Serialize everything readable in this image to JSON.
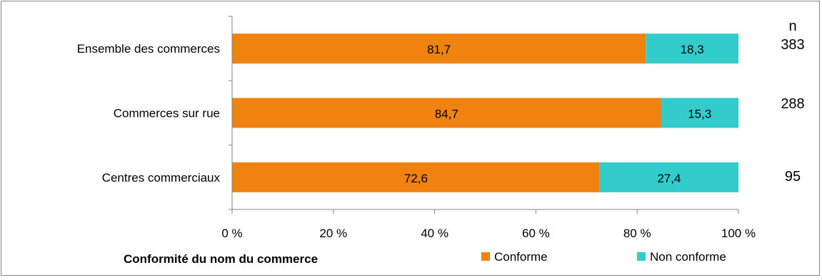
{
  "chart_data": {
    "type": "bar",
    "orientation": "horizontal",
    "stacked": true,
    "categories": [
      "Ensemble des commerces",
      "Commerces sur rue",
      "Centres commerciaux"
    ],
    "series": [
      {
        "name": "Conforme",
        "values": [
          81.7,
          84.7,
          72.6
        ],
        "labels": [
          "81,7",
          "84,7",
          "72,6"
        ],
        "color": "#f0820f"
      },
      {
        "name": "Non conforme",
        "values": [
          18.3,
          15.3,
          27.4
        ],
        "labels": [
          "18,3",
          "15,3",
          "27,4"
        ],
        "color": "#33cccc"
      }
    ],
    "xlim": [
      0,
      100
    ],
    "xticks": [
      "0 %",
      "20 %",
      "40 %",
      "60 %",
      "80 %",
      "100 %"
    ],
    "xtick_values": [
      0,
      20,
      40,
      60,
      80,
      100
    ],
    "xlabel": "Conformité du nom du commerce",
    "n_header": "n",
    "n_values": [
      "383",
      "288",
      "95"
    ],
    "legend_position": "bottom",
    "grid": false
  }
}
